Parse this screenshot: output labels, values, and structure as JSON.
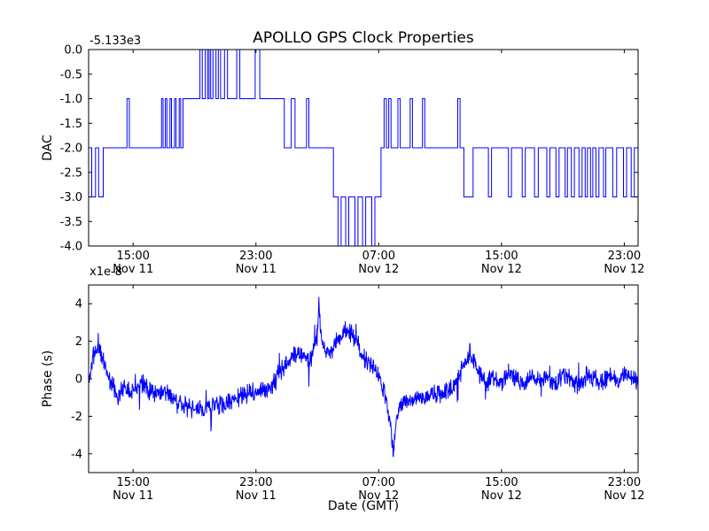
{
  "figure": {
    "background": "#ffffff",
    "line_color": "#0000ff",
    "frame_color": "#000000"
  },
  "chart_data": [
    {
      "type": "step",
      "title": "APOLLO GPS Clock Properties",
      "ylabel": "DAC",
      "y_offset_text": "-5.133e3",
      "xlim": [
        12.1,
        47.9
      ],
      "ylim": [
        -4,
        0
      ],
      "yticks": [
        0,
        -0.5,
        -1,
        -1.5,
        -2,
        -2.5,
        -3,
        -3.5,
        -4
      ],
      "yticklabels": [
        "0.0",
        "-0.5",
        "-1.0",
        "-1.5",
        "-2.0",
        "-2.5",
        "-3.0",
        "-3.5",
        "-4.0"
      ],
      "xticks": [
        15,
        23,
        31,
        39,
        47
      ],
      "xticklabels": [
        [
          "15:00",
          "Nov 11"
        ],
        [
          "23:00",
          "Nov 11"
        ],
        [
          "07:00",
          "Nov 12"
        ],
        [
          "15:00",
          "Nov 12"
        ],
        [
          "23:00",
          "Nov 12"
        ]
      ],
      "steps": [
        [
          12.1,
          -2
        ],
        [
          12.3,
          -3
        ],
        [
          12.55,
          -2
        ],
        [
          12.75,
          -3
        ],
        [
          13.05,
          -2
        ],
        [
          14.6,
          -1
        ],
        [
          14.75,
          -2
        ],
        [
          16.85,
          -1
        ],
        [
          16.95,
          -2
        ],
        [
          17.1,
          -1
        ],
        [
          17.2,
          -2
        ],
        [
          17.4,
          -1
        ],
        [
          17.5,
          -2
        ],
        [
          17.7,
          -1
        ],
        [
          17.8,
          -2
        ],
        [
          18.0,
          -1
        ],
        [
          18.1,
          -2
        ],
        [
          18.25,
          -1
        ],
        [
          19.35,
          0
        ],
        [
          19.5,
          -1
        ],
        [
          19.7,
          0
        ],
        [
          19.85,
          -1
        ],
        [
          19.95,
          0
        ],
        [
          20.05,
          -1
        ],
        [
          20.2,
          0
        ],
        [
          20.4,
          -1
        ],
        [
          20.55,
          0
        ],
        [
          20.7,
          -1
        ],
        [
          20.95,
          0
        ],
        [
          21.15,
          -1
        ],
        [
          21.75,
          0
        ],
        [
          21.95,
          -1
        ],
        [
          22.95,
          0
        ],
        [
          23.25,
          -1
        ],
        [
          24.85,
          -2
        ],
        [
          25.3,
          -1
        ],
        [
          25.55,
          -2
        ],
        [
          26.3,
          -1
        ],
        [
          26.45,
          -2
        ],
        [
          28.05,
          -3
        ],
        [
          28.35,
          -4
        ],
        [
          28.55,
          -3
        ],
        [
          28.85,
          -4
        ],
        [
          29.05,
          -3
        ],
        [
          29.45,
          -4
        ],
        [
          29.65,
          -3
        ],
        [
          29.95,
          -4
        ],
        [
          30.15,
          -3
        ],
        [
          30.55,
          -4
        ],
        [
          30.75,
          -3
        ],
        [
          31.15,
          -2
        ],
        [
          31.35,
          -1
        ],
        [
          31.5,
          -2
        ],
        [
          31.65,
          -1
        ],
        [
          31.8,
          -2
        ],
        [
          32.25,
          -1
        ],
        [
          32.4,
          -2
        ],
        [
          33.05,
          -1
        ],
        [
          33.2,
          -2
        ],
        [
          33.85,
          -1
        ],
        [
          34.0,
          -2
        ],
        [
          36.15,
          -1
        ],
        [
          36.3,
          -2
        ],
        [
          36.55,
          -3
        ],
        [
          37.15,
          -2
        ],
        [
          38.15,
          -3
        ],
        [
          38.35,
          -2
        ],
        [
          39.45,
          -3
        ],
        [
          39.65,
          -2
        ],
        [
          40.35,
          -3
        ],
        [
          40.55,
          -2
        ],
        [
          41.15,
          -3
        ],
        [
          41.4,
          -2
        ],
        [
          41.95,
          -3
        ],
        [
          42.15,
          -2
        ],
        [
          42.55,
          -3
        ],
        [
          42.75,
          -2
        ],
        [
          43.15,
          -3
        ],
        [
          43.3,
          -2
        ],
        [
          43.55,
          -3
        ],
        [
          43.75,
          -2
        ],
        [
          44.05,
          -3
        ],
        [
          44.25,
          -2
        ],
        [
          44.45,
          -3
        ],
        [
          44.6,
          -2
        ],
        [
          44.8,
          -3
        ],
        [
          44.95,
          -2
        ],
        [
          45.15,
          -3
        ],
        [
          45.35,
          -2
        ],
        [
          45.65,
          -3
        ],
        [
          45.8,
          -2
        ],
        [
          46.25,
          -3
        ],
        [
          46.5,
          -2
        ],
        [
          46.95,
          -3
        ],
        [
          47.15,
          -2
        ],
        [
          47.45,
          -3
        ],
        [
          47.65,
          -2
        ]
      ]
    },
    {
      "type": "line",
      "ylabel": "Phase (s)",
      "y_scale_text": "x1e-8",
      "xlabel": "Date (GMT)",
      "xlim": [
        12.1,
        47.9
      ],
      "ylim": [
        -5,
        5
      ],
      "yticks": [
        -4,
        -2,
        0,
        2,
        4
      ],
      "yticklabels": [
        "-4",
        "-2",
        "0",
        "2",
        "4"
      ],
      "xticks": [
        15,
        23,
        31,
        39,
        47
      ],
      "xticklabels": [
        [
          "15:00",
          "Nov 11"
        ],
        [
          "23:00",
          "Nov 11"
        ],
        [
          "07:00",
          "Nov 12"
        ],
        [
          "15:00",
          "Nov 12"
        ],
        [
          "23:00",
          "Nov 12"
        ]
      ],
      "trend": [
        [
          12.1,
          -0.2
        ],
        [
          12.4,
          1.3
        ],
        [
          12.8,
          1.6
        ],
        [
          13.2,
          0.6
        ],
        [
          13.6,
          -0.3
        ],
        [
          14.0,
          -0.9
        ],
        [
          14.4,
          -0.4
        ],
        [
          15.0,
          -0.6
        ],
        [
          15.5,
          -0.2
        ],
        [
          16.0,
          -0.5
        ],
        [
          16.5,
          -0.8
        ],
        [
          17.0,
          -0.6
        ],
        [
          17.5,
          -1.0
        ],
        [
          18.0,
          -1.2
        ],
        [
          18.5,
          -1.5
        ],
        [
          19.0,
          -1.7
        ],
        [
          19.5,
          -1.6
        ],
        [
          20.0,
          -1.5
        ],
        [
          20.5,
          -1.3
        ],
        [
          21.0,
          -1.4
        ],
        [
          21.5,
          -1.1
        ],
        [
          22.0,
          -0.9
        ],
        [
          22.5,
          -0.8
        ],
        [
          23.0,
          -0.7
        ],
        [
          23.5,
          -0.6
        ],
        [
          24.0,
          -0.4
        ],
        [
          24.5,
          0.3
        ],
        [
          25.0,
          0.8
        ],
        [
          25.5,
          1.4
        ],
        [
          26.0,
          1.2
        ],
        [
          26.5,
          1.0
        ],
        [
          27.0,
          2.2
        ],
        [
          27.1,
          4.0
        ],
        [
          27.3,
          1.8
        ],
        [
          27.6,
          1.3
        ],
        [
          28.0,
          1.6
        ],
        [
          28.4,
          2.2
        ],
        [
          28.8,
          2.6
        ],
        [
          29.2,
          2.4
        ],
        [
          29.6,
          1.8
        ],
        [
          30.0,
          1.2
        ],
        [
          30.4,
          0.8
        ],
        [
          30.8,
          0.4
        ],
        [
          31.2,
          -0.2
        ],
        [
          31.5,
          -1.2
        ],
        [
          31.8,
          -2.6
        ],
        [
          31.95,
          -4.4
        ],
        [
          32.1,
          -2.2
        ],
        [
          32.4,
          -1.4
        ],
        [
          32.8,
          -1.0
        ],
        [
          33.2,
          -1.2
        ],
        [
          33.6,
          -0.9
        ],
        [
          34.0,
          -1.1
        ],
        [
          34.5,
          -0.8
        ],
        [
          35.0,
          -0.9
        ],
        [
          35.5,
          -0.6
        ],
        [
          36.0,
          -0.4
        ],
        [
          36.5,
          0.6
        ],
        [
          36.9,
          1.5
        ],
        [
          37.2,
          0.8
        ],
        [
          37.6,
          0.2
        ],
        [
          38.0,
          -0.3
        ],
        [
          38.5,
          0.1
        ],
        [
          39.0,
          -0.2
        ],
        [
          39.5,
          0.3
        ],
        [
          40.0,
          -0.1
        ],
        [
          40.5,
          -0.4
        ],
        [
          41.0,
          0.2
        ],
        [
          41.5,
          -0.2
        ],
        [
          42.0,
          0.1
        ],
        [
          42.5,
          -0.3
        ],
        [
          43.0,
          0.2
        ],
        [
          43.5,
          -0.1
        ],
        [
          44.0,
          -0.3
        ],
        [
          44.5,
          0.2
        ],
        [
          45.0,
          0.0
        ],
        [
          45.5,
          -0.2
        ],
        [
          46.0,
          0.1
        ],
        [
          46.5,
          -0.1
        ],
        [
          47.0,
          0.2
        ],
        [
          47.5,
          0.0
        ],
        [
          47.9,
          -0.1
        ]
      ],
      "noise": {
        "amplitude": 0.6,
        "spike_probability": 0.02,
        "spike_scale": 2.2,
        "samples": 1600,
        "seed": 11
      }
    }
  ]
}
